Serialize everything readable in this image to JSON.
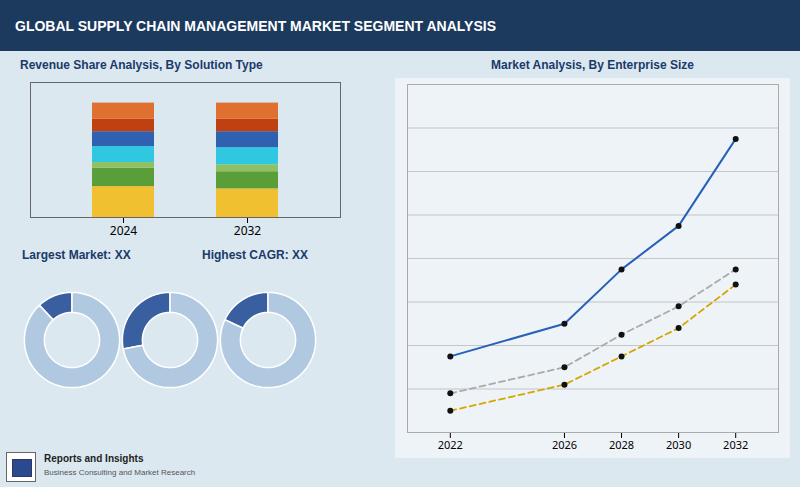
{
  "title": "GLOBAL SUPPLY CHAIN MANAGEMENT MARKET SEGMENT ANALYSIS",
  "annotations": [
    "Reports and Insights",
    "Business Consulting and Market Research"
  ],
  "chart_data": [
    {
      "type": "bar",
      "title": "Revenue Share Analysis, By Solution Type",
      "categories": [
        "2024",
        "2032"
      ],
      "stacked": true,
      "ylim": [
        0,
        1.18
      ],
      "tick_labels": "x",
      "annotations": [
        "Largest Market: XX",
        "Highest CAGR: XX"
      ],
      "series": [
        {
          "color": "#f0c030",
          "values": [
            0.27,
            0.25
          ]
        },
        {
          "color": "#5a9e3a",
          "values": [
            0.16,
            0.15
          ]
        },
        {
          "color": "#90c060",
          "values": [
            0.05,
            0.06
          ]
        },
        {
          "color": "#30c8e0",
          "values": [
            0.14,
            0.15
          ]
        },
        {
          "color": "#3060b0",
          "values": [
            0.13,
            0.14
          ]
        },
        {
          "color": "#c04010",
          "values": [
            0.11,
            0.11
          ]
        },
        {
          "color": "#e07030",
          "values": [
            0.14,
            0.14
          ]
        }
      ]
    },
    {
      "type": "donut",
      "values": [
        12,
        88
      ],
      "colors": [
        "#3a5fa0",
        "#b0c8e0"
      ]
    },
    {
      "type": "donut",
      "values": [
        28,
        72
      ],
      "colors": [
        "#3a5fa0",
        "#b0c8e0"
      ]
    },
    {
      "type": "donut",
      "values": [
        18,
        82
      ],
      "colors": [
        "#3a5fa0",
        "#b0c8e0"
      ]
    },
    {
      "type": "line",
      "title": "Market Analysis, By Enterprise Size",
      "x": [
        2022,
        2026,
        2028,
        2030,
        2032
      ],
      "xlim": [
        2020.5,
        2033.5
      ],
      "xticks": [
        2022,
        2026,
        2028,
        2030,
        2032
      ],
      "ylim": [
        0,
        16
      ],
      "yticks": [
        2,
        4,
        6,
        8,
        10,
        12,
        14
      ],
      "grid": true,
      "tick_labels": "x",
      "series": [
        {
          "color": "#2860b8",
          "line_style": "solid",
          "marker": "circle",
          "values": [
            3.5,
            5.0,
            7.5,
            9.5,
            13.5
          ]
        },
        {
          "color": "#aaaaaa",
          "line_style": "dashed",
          "marker": "circle",
          "values": [
            1.8,
            3.0,
            4.5,
            5.8,
            7.5
          ]
        },
        {
          "color": "#d4a800",
          "line_style": "dashed",
          "marker": "circle",
          "values": [
            1.0,
            2.2,
            3.5,
            4.8,
            6.8
          ]
        }
      ]
    }
  ]
}
